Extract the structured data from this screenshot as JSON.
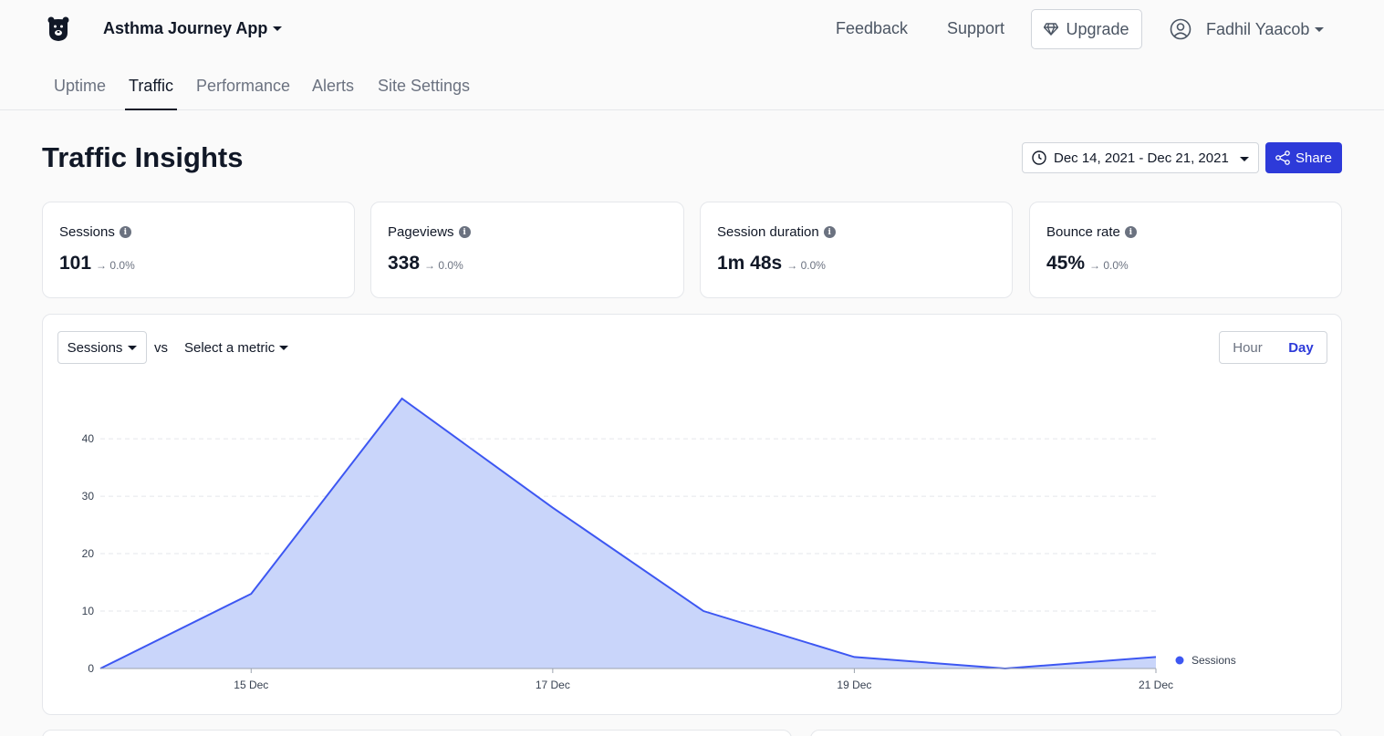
{
  "app": {
    "name": "Asthma Journey App"
  },
  "nav": {
    "feedback": "Feedback",
    "support": "Support",
    "upgrade": "Upgrade",
    "user_name": "Fadhil Yaacob"
  },
  "tabs": [
    {
      "label": "Uptime"
    },
    {
      "label": "Traffic"
    },
    {
      "label": "Performance"
    },
    {
      "label": "Alerts"
    },
    {
      "label": "Site Settings"
    }
  ],
  "page": {
    "title": "Traffic Insights",
    "date_range": "Dec 14, 2021 - Dec 21, 2021",
    "share": "Share"
  },
  "stats": [
    {
      "label": "Sessions",
      "value": "101",
      "change": "0.0%"
    },
    {
      "label": "Pageviews",
      "value": "338",
      "change": "0.0%"
    },
    {
      "label": "Session duration",
      "value": "1m 48s",
      "change": "0.0%"
    },
    {
      "label": "Bounce rate",
      "value": "45%",
      "change": "0.0%"
    }
  ],
  "chart_controls": {
    "metric": "Sessions",
    "vs": "vs",
    "select_metric": "Select a metric",
    "hour": "Hour",
    "day": "Day"
  },
  "colors": {
    "accent": "#2d3ad9",
    "series_line": "#3d57f2",
    "series_fill": "#c9d5fa"
  },
  "chart_data": {
    "type": "area",
    "x": [
      "14 Dec",
      "15 Dec",
      "16 Dec",
      "17 Dec",
      "18 Dec",
      "19 Dec",
      "20 Dec",
      "21 Dec"
    ],
    "x_tick_labels": [
      "15 Dec",
      "17 Dec",
      "19 Dec",
      "21 Dec"
    ],
    "y_ticks": [
      0,
      10,
      20,
      30,
      40
    ],
    "ylim": [
      0,
      47
    ],
    "series": [
      {
        "name": "Sessions",
        "values": [
          0,
          13,
          47,
          28,
          10,
          2,
          0,
          2
        ]
      }
    ],
    "grid": true,
    "legend": "right"
  }
}
